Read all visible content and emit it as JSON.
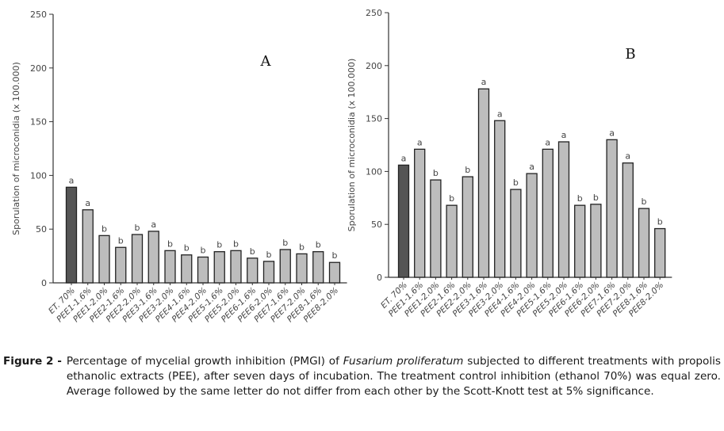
{
  "chart_data": [
    {
      "type": "bar",
      "panel_label": "A",
      "ylabel": "Sporulation of microconidia (x 100.000)",
      "ylim": [
        0,
        250
      ],
      "yticks": [
        0,
        50,
        100,
        150,
        200,
        250
      ],
      "grid": false,
      "categories": [
        "ET. 70%",
        "PEE1-1.6%",
        "PEE1-2.0%",
        "PEE2-1.6%",
        "PEE2-2.0%",
        "PEE3-1.6%",
        "PEE3-2.0%",
        "PEE4-1.6%",
        "PEE4-2.0%",
        "PEE5-1.6%",
        "PEE5-2.0%",
        "PEE6-1.6%",
        "PEE6-2.0%",
        "PEE7-1.6%",
        "PEE7-2.0%",
        "PEE8-1.6%",
        "PEE8-2.0%"
      ],
      "values": [
        89,
        68,
        44,
        33,
        45,
        48,
        30,
        26,
        24,
        29,
        30,
        23,
        20,
        31,
        27,
        29,
        19
      ],
      "letters": [
        "a",
        "a",
        "b",
        "b",
        "b",
        "a",
        "b",
        "b",
        "b",
        "b",
        "b",
        "b",
        "b",
        "b",
        "b",
        "b",
        "b"
      ],
      "bar_colors": {
        "control": "#555555",
        "treatment": "#bdbdbd"
      }
    },
    {
      "type": "bar",
      "panel_label": "B",
      "ylabel": "Sporulation of microconidia (x 100.000)",
      "ylim": [
        0,
        250
      ],
      "yticks": [
        0,
        50,
        100,
        150,
        200,
        250
      ],
      "grid": false,
      "categories": [
        "ET. 70%",
        "PEE1-1.6%",
        "PEE1-2.0%",
        "PEE2-1.6%",
        "PEE2-2.0%",
        "PEE3-1.6%",
        "PEE3-2.0%",
        "PEE4-1.6%",
        "PEE4-2.0%",
        "PEE5-1.6%",
        "PEE5-2.0%",
        "PEE6-1.6%",
        "PEE6-2.0%",
        "PEE7-1.6%",
        "PEE7-2.0%",
        "PEE8-1.6%",
        "PEE8-2.0%"
      ],
      "values": [
        106,
        121,
        92,
        68,
        95,
        178,
        148,
        83,
        98,
        121,
        128,
        68,
        69,
        130,
        108,
        65,
        46
      ],
      "letters": [
        "a",
        "a",
        "b",
        "b",
        "b",
        "a",
        "a",
        "b",
        "a",
        "a",
        "a",
        "b",
        "b",
        "a",
        "a",
        "b",
        "b"
      ],
      "bar_colors": {
        "control": "#555555",
        "treatment": "#bdbdbd"
      }
    }
  ],
  "caption": {
    "label": "Figure 2 -",
    "text_before": "Percentage of mycelial growth inhibition (PMGI) of",
    "species": "Fusarium proliferatum",
    "text_after": "subjected to different treatments with propolis ethanolic extracts (PEE), after seven days of incubation. The treatment control inhibition (ethanol 70%) was equal zero. Average followed by the same letter do not differ from each other by the Scott-Knott test at 5% significance."
  }
}
